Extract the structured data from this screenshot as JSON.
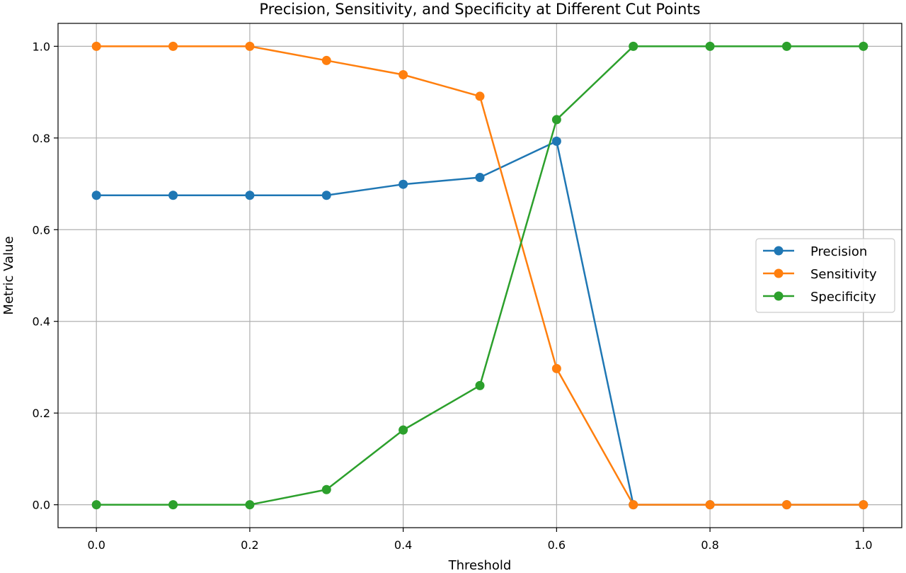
{
  "chart_data": {
    "type": "line",
    "title": "Precision, Sensitivity, and Specificity at Different Cut Points",
    "xlabel": "Threshold",
    "ylabel": "Metric Value",
    "x": [
      0.0,
      0.1,
      0.2,
      0.3,
      0.4,
      0.5,
      0.6,
      0.7,
      0.8,
      0.9,
      1.0
    ],
    "xlim": [
      -0.05,
      1.05
    ],
    "ylim": [
      -0.05,
      1.05
    ],
    "x_ticks": [
      "0.0",
      "0.2",
      "0.4",
      "0.6",
      "0.8",
      "1.0"
    ],
    "y_ticks": [
      "0.0",
      "0.2",
      "0.4",
      "0.6",
      "0.8",
      "1.0"
    ],
    "grid": true,
    "legend_position": "center-right",
    "series": [
      {
        "name": "Precision",
        "color": "#1f77b4",
        "values": [
          0.675,
          0.675,
          0.675,
          0.675,
          0.699,
          0.714,
          0.793,
          0.0,
          0.0,
          0.0,
          0.0
        ]
      },
      {
        "name": "Sensitivity",
        "color": "#ff7f0e",
        "values": [
          1.0,
          1.0,
          1.0,
          0.969,
          0.938,
          0.891,
          0.297,
          0.0,
          0.0,
          0.0,
          0.0
        ]
      },
      {
        "name": "Specificity",
        "color": "#2ca02c",
        "values": [
          0.0,
          0.0,
          0.0,
          0.033,
          0.163,
          0.26,
          0.84,
          1.0,
          1.0,
          1.0,
          1.0
        ]
      }
    ]
  }
}
